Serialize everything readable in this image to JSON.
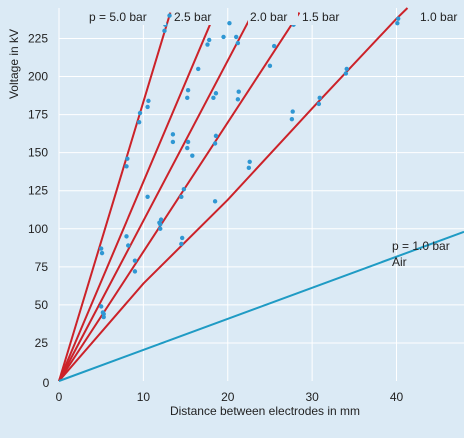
{
  "chart_data": {
    "type": "scatter",
    "title": "",
    "xlabel": "Distance between electrodes in mm",
    "ylabel": "Voltage in kV",
    "xlim": [
      0,
      48
    ],
    "ylim": [
      0,
      245
    ],
    "x_ticks": [
      0,
      10,
      20,
      30,
      40
    ],
    "x_tick_labels": [
      "0",
      "10",
      "20",
      "30",
      "40"
    ],
    "y_ticks": [
      25,
      50,
      75,
      100,
      125,
      150,
      175,
      200,
      225
    ],
    "y_tick_labels": [
      "25",
      "50",
      "75",
      "100",
      "125",
      "150",
      "175",
      "200",
      "225"
    ],
    "y_zero_label": "0",
    "grid": true,
    "legend": "none",
    "colors": {
      "background": "#dbeaf5",
      "grid": "#ffffff",
      "gas_line": "#cc2229",
      "points": "#2f97d3",
      "air_line": "#1f9bc4",
      "text": "#222222"
    },
    "series": [
      {
        "name": "p = 5.0 bar",
        "line": [
          [
            0,
            0
          ],
          [
            13.2,
            242
          ]
        ],
        "points": [
          [
            5.0,
            87
          ],
          [
            5.1,
            84
          ],
          [
            8.0,
            141
          ],
          [
            8.1,
            146
          ],
          [
            9.5,
            170
          ],
          [
            9.6,
            176
          ],
          [
            10.5,
            180
          ],
          [
            10.6,
            184
          ],
          [
            12.5,
            230
          ],
          [
            12.6,
            234
          ],
          [
            13.1,
            240
          ]
        ]
      },
      {
        "name": "2.5 bar",
        "line": [
          [
            0,
            0
          ],
          [
            18.5,
            242
          ]
        ],
        "points": [
          [
            5.0,
            49
          ],
          [
            8.0,
            95
          ],
          [
            10.5,
            121
          ],
          [
            12.0,
            103
          ],
          [
            12.1,
            106
          ],
          [
            13.5,
            157
          ],
          [
            13.5,
            162
          ],
          [
            15.2,
            186
          ],
          [
            15.3,
            191
          ],
          [
            16.5,
            205
          ],
          [
            17.6,
            221
          ],
          [
            17.8,
            224
          ]
        ]
      },
      {
        "name": "2.0 bar",
        "line": [
          [
            0,
            0
          ],
          [
            23.0,
            242
          ]
        ],
        "points": [
          [
            5.3,
            44
          ],
          [
            8.2,
            89
          ],
          [
            11.9,
            104
          ],
          [
            12.0,
            100
          ],
          [
            15.2,
            153
          ],
          [
            15.3,
            157
          ],
          [
            15.8,
            148
          ],
          [
            18.3,
            186
          ],
          [
            18.6,
            189
          ],
          [
            19.5,
            226
          ],
          [
            20.2,
            235
          ],
          [
            21.0,
            226
          ],
          [
            21.2,
            222
          ]
        ]
      },
      {
        "name": "1.5 bar",
        "line": [
          [
            0,
            0
          ],
          [
            28.5,
            242
          ]
        ],
        "points": [
          [
            5.3,
            42
          ],
          [
            9.0,
            79
          ],
          [
            14.5,
            121
          ],
          [
            14.8,
            126
          ],
          [
            18.5,
            156
          ],
          [
            18.6,
            161
          ],
          [
            21.2,
            185
          ],
          [
            21.3,
            190
          ],
          [
            25.0,
            207
          ],
          [
            25.5,
            220
          ],
          [
            27.8,
            234
          ],
          [
            27.8,
            239
          ]
        ]
      },
      {
        "name": "1.0 bar",
        "line": [
          [
            0,
            0
          ],
          [
            10,
            64
          ],
          [
            20,
            119
          ],
          [
            30,
            179
          ],
          [
            40,
            238
          ],
          [
            41.3,
            245
          ]
        ],
        "points": [
          [
            5.2,
            45
          ],
          [
            9.0,
            72
          ],
          [
            14.5,
            90
          ],
          [
            14.6,
            94
          ],
          [
            18.5,
            118
          ],
          [
            22.5,
            140
          ],
          [
            22.6,
            144
          ],
          [
            27.6,
            172
          ],
          [
            27.7,
            177
          ],
          [
            30.8,
            182
          ],
          [
            30.9,
            186
          ],
          [
            34.0,
            202
          ],
          [
            34.1,
            205
          ],
          [
            40.1,
            235
          ],
          [
            40.2,
            238
          ],
          [
            43.0,
            243
          ]
        ]
      },
      {
        "name": "p = 1.0 bar Air",
        "line": [
          [
            0,
            0
          ],
          [
            48,
            98
          ]
        ],
        "points": []
      }
    ],
    "annotations": {
      "p50": "p = 5.0 bar",
      "p25": "2.5 bar",
      "p20": "2.0 bar",
      "p15": "1.5 bar",
      "p10": "1.0 bar",
      "air_p": "p = 1.0 bar",
      "air_name": "Air"
    }
  }
}
